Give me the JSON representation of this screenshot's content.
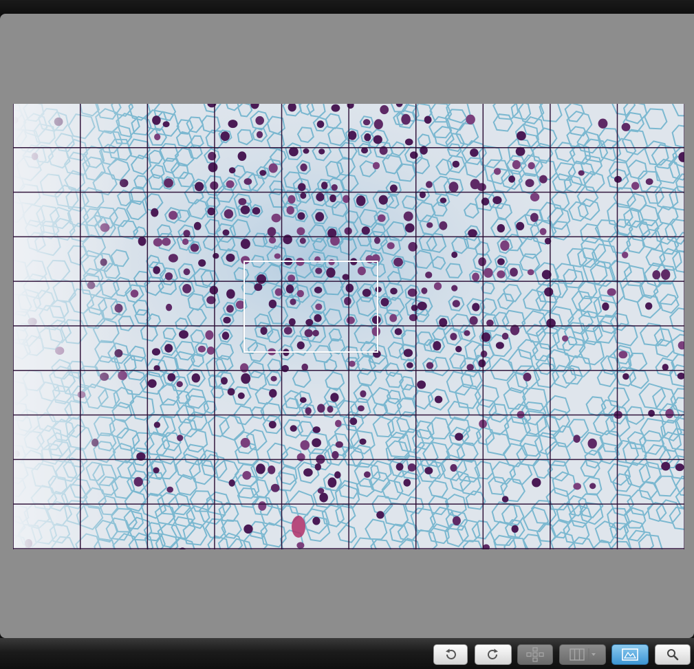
{
  "viewer": {
    "image_name": "root-tip-tissue-micrograph",
    "grid": {
      "columns": 10,
      "rows": 10,
      "visible": true
    },
    "selection": {
      "visible": true
    }
  },
  "toolbar": {
    "buttons": [
      {
        "name": "rotate-left-button",
        "icon": "rotate-left-icon",
        "state": "normal"
      },
      {
        "name": "rotate-right-button",
        "icon": "rotate-right-icon",
        "state": "normal"
      },
      {
        "name": "layout-button",
        "icon": "layout-grid-icon",
        "state": "disabled"
      },
      {
        "name": "panels-button",
        "icon": "panels-dropdown-icon",
        "state": "disabled"
      },
      {
        "name": "image-view-button",
        "icon": "image-icon",
        "state": "active"
      },
      {
        "name": "zoom-button",
        "icon": "magnifier-icon",
        "state": "normal"
      }
    ]
  },
  "colors": {
    "panel_background": "#8d8d8d",
    "tissue_background": "#dfe5ec",
    "cell_wall": "#5aa9c7",
    "nucleus": "#4a1a55",
    "grid_line": "#280a32",
    "selection_border": "#ffffff",
    "active_button": "#3c95d4"
  }
}
